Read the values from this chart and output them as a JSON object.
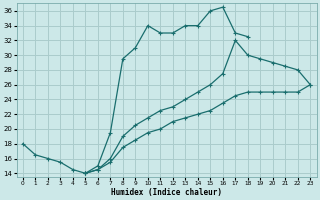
{
  "title": "",
  "xlabel": "Humidex (Indice chaleur)",
  "bg_color": "#cce8e8",
  "line_color": "#1a6e6e",
  "grid_color": "#aacccc",
  "ylim": [
    13.5,
    37
  ],
  "xlim": [
    -0.5,
    23.5
  ],
  "yticks": [
    14,
    16,
    18,
    20,
    22,
    24,
    26,
    28,
    30,
    32,
    34,
    36
  ],
  "xticks": [
    0,
    1,
    2,
    3,
    4,
    5,
    6,
    7,
    8,
    9,
    10,
    11,
    12,
    13,
    14,
    15,
    16,
    17,
    18,
    19,
    20,
    21,
    22,
    23
  ],
  "curves": [
    {
      "x": [
        0,
        1,
        2,
        3,
        4,
        5,
        6,
        7,
        8,
        9,
        10,
        11,
        12,
        13,
        14,
        15,
        16,
        17,
        18
      ],
      "y": [
        18,
        16.5,
        16,
        15.5,
        14.5,
        14.0,
        15.0,
        19.5,
        29.5,
        31.0,
        34.0,
        33.0,
        33.0,
        34.0,
        34.0,
        36.0,
        36.5,
        33.0,
        32.5
      ]
    },
    {
      "x": [
        5,
        6,
        7,
        8,
        9,
        10,
        11,
        12,
        13,
        14,
        15,
        16,
        17,
        18,
        19,
        20,
        21,
        22,
        23
      ],
      "y": [
        14.0,
        14.5,
        16.0,
        19.0,
        20.5,
        21.5,
        22.5,
        23.0,
        24.0,
        25.0,
        26.0,
        27.5,
        32.0,
        30.0,
        29.5,
        29.0,
        28.5,
        28.0,
        26.0
      ]
    },
    {
      "x": [
        5,
        6,
        7,
        8,
        9,
        10,
        11,
        12,
        13,
        14,
        15,
        16,
        17,
        18,
        19,
        20,
        21,
        22,
        23
      ],
      "y": [
        14.0,
        14.5,
        15.5,
        17.5,
        18.5,
        19.5,
        20.0,
        21.0,
        21.5,
        22.0,
        22.5,
        23.5,
        24.5,
        25.0,
        25.0,
        25.0,
        25.0,
        25.0,
        26.0
      ]
    }
  ]
}
